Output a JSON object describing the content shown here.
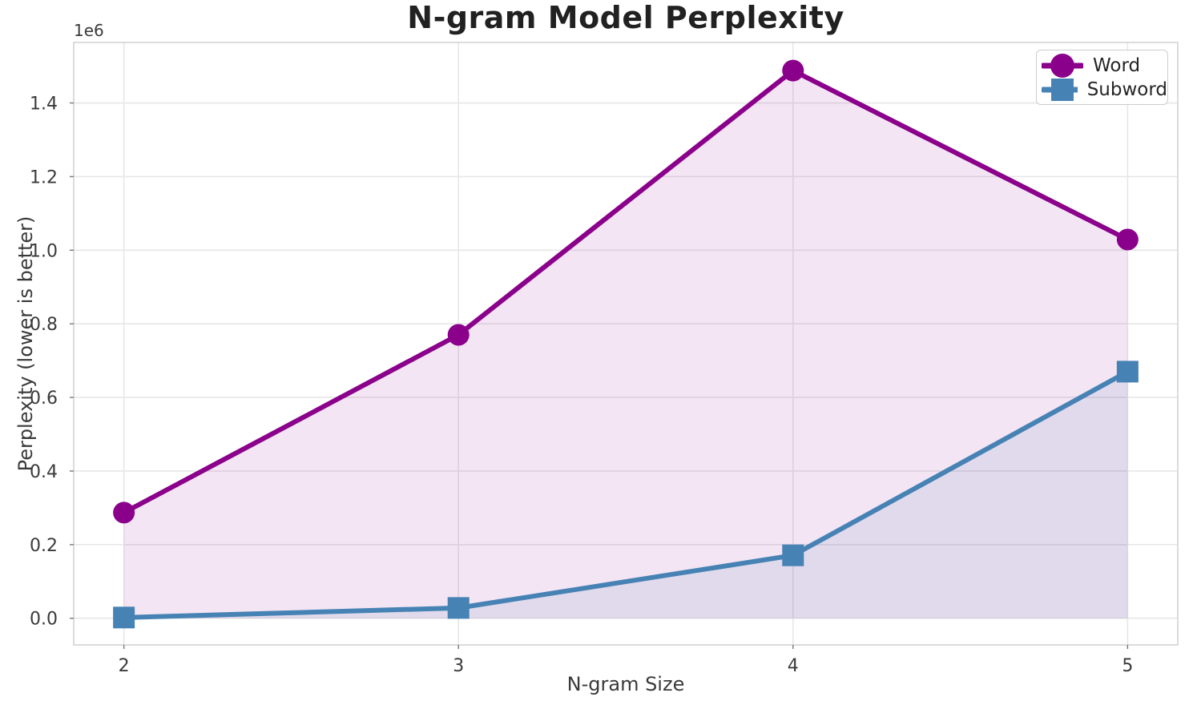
{
  "chart_data": {
    "type": "line",
    "title": "N-gram Model Perplexity",
    "xlabel": "N-gram Size",
    "ylabel": "Perplexity (lower is better)",
    "x": [
      2,
      3,
      4,
      5
    ],
    "series": [
      {
        "name": "Word",
        "marker": "circle",
        "color": "#8B008B",
        "values": [
          287000,
          770000,
          1488000,
          1029000
        ]
      },
      {
        "name": "Subword",
        "marker": "square",
        "color": "#4682B4",
        "values": [
          2000,
          28000,
          171000,
          670000
        ]
      }
    ],
    "fill_to_zero": true,
    "fill_alpha": 0.1,
    "xlim": [
      1.85,
      5.15
    ],
    "ylim": [
      -72400,
      1564400
    ],
    "xticks": [
      2,
      3,
      4,
      5
    ],
    "xtick_labels": [
      "2",
      "3",
      "4",
      "5"
    ],
    "yticks": [
      0,
      200000,
      400000,
      600000,
      800000,
      1000000,
      1200000,
      1400000
    ],
    "ytick_labels": [
      "0.0",
      "0.2",
      "0.4",
      "0.6",
      "0.8",
      "1.0",
      "1.2",
      "1.4"
    ],
    "y_offset_text": "1e6",
    "grid": true,
    "legend_position": "upper right",
    "legend": [
      "Word",
      "Subword"
    ]
  },
  "colors": {
    "background": "#ffffff",
    "grid": "#e7e7e7",
    "spine": "#d0d0d0",
    "tick_text": "#3a3a3a",
    "title_text": "#212121",
    "legend_border": "#cccccc"
  }
}
